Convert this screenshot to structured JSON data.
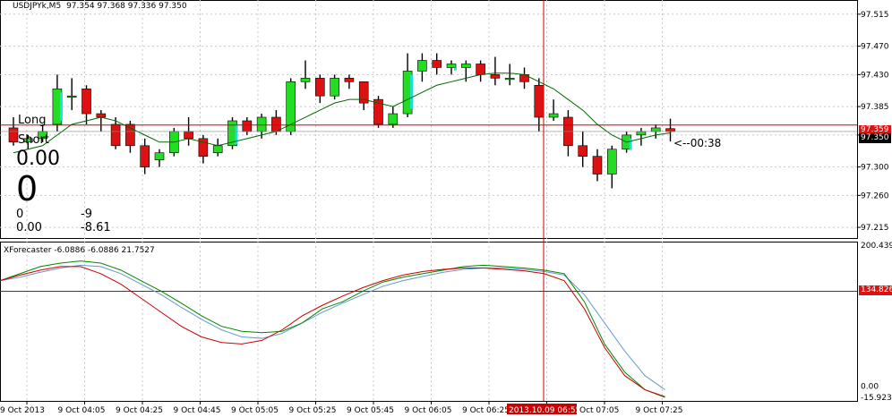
{
  "main_header": {
    "symbol": "USDJPYk,M5",
    "ohlc": "97.354 97.368 97.336 97.350"
  },
  "overlay": {
    "long_label": "Long",
    "short_label": "Short",
    "value_main": "0.00",
    "value_big": "0",
    "col1_row1": "0",
    "col1_row2": "0.00",
    "col2_row1": "-9",
    "col2_row2": "-8.61",
    "timer": "<--00:38"
  },
  "price_axis": {
    "ticks": [
      "97.515",
      "97.470",
      "97.430",
      "97.385",
      "97.345",
      "97.300",
      "97.260",
      "97.215"
    ],
    "current_bid": "97.350",
    "ask_line": "97.359"
  },
  "indicator": {
    "header": "XForecaster -6.0886 -6.0886 21.7527",
    "ticks": [
      "200.439",
      "0.00",
      "-15.9232"
    ],
    "level_line": "134.826"
  },
  "time_axis": {
    "labels": [
      "9 Oct 2013",
      "9 Oct 04:05",
      "9 Oct 04:25",
      "9 Oct 04:45",
      "9 Oct 05:05",
      "9 Oct 05:25",
      "9 Oct 05:45",
      "9 Oct 06:05",
      "9 Oct 06:25",
      "2013.10.09 06:55",
      "Oct 07:05",
      "9 Oct 07:25"
    ],
    "highlight_label": "2013.10.09 06:55"
  },
  "colors": {
    "bull": "#22dd22",
    "bear": "#dd1111",
    "wick": "#000000",
    "cyan_ha": "#22dddd",
    "ma": "#006600",
    "grid": "#c8c8c8",
    "crosshair": "#cc0000",
    "forecast_green": "#008800",
    "forecast_red": "#cc0000",
    "forecast_blue": "#6699cc"
  },
  "chart_data": {
    "type": "candlestick",
    "symbol": "USDJPYk",
    "timeframe": "M5",
    "ylim": [
      97.2,
      97.535
    ],
    "candles": [
      {
        "o": 97.355,
        "h": 97.37,
        "l": 97.33,
        "c": 97.335
      },
      {
        "o": 97.335,
        "h": 97.345,
        "l": 97.325,
        "c": 97.34
      },
      {
        "o": 97.34,
        "h": 97.36,
        "l": 97.335,
        "c": 97.35
      },
      {
        "o": 97.36,
        "h": 97.43,
        "l": 97.35,
        "c": 97.41
      },
      {
        "o": 97.4,
        "h": 97.425,
        "l": 97.38,
        "c": 97.4
      },
      {
        "o": 97.41,
        "h": 97.415,
        "l": 97.36,
        "c": 97.375
      },
      {
        "o": 97.375,
        "h": 97.38,
        "l": 97.35,
        "c": 97.37
      },
      {
        "o": 97.36,
        "h": 97.37,
        "l": 97.325,
        "c": 97.33
      },
      {
        "o": 97.36,
        "h": 97.365,
        "l": 97.32,
        "c": 97.33
      },
      {
        "o": 97.33,
        "h": 97.34,
        "l": 97.29,
        "c": 97.3
      },
      {
        "o": 97.31,
        "h": 97.325,
        "l": 97.3,
        "c": 97.32
      },
      {
        "o": 97.32,
        "h": 97.355,
        "l": 97.315,
        "c": 97.35
      },
      {
        "o": 97.35,
        "h": 97.37,
        "l": 97.33,
        "c": 97.34
      },
      {
        "o": 97.34,
        "h": 97.345,
        "l": 97.305,
        "c": 97.315
      },
      {
        "o": 97.32,
        "h": 97.34,
        "l": 97.315,
        "c": 97.33
      },
      {
        "o": 97.33,
        "h": 97.37,
        "l": 97.325,
        "c": 97.365
      },
      {
        "o": 97.365,
        "h": 97.37,
        "l": 97.345,
        "c": 97.35
      },
      {
        "o": 97.35,
        "h": 97.375,
        "l": 97.34,
        "c": 97.37
      },
      {
        "o": 97.37,
        "h": 97.38,
        "l": 97.345,
        "c": 97.35
      },
      {
        "o": 97.35,
        "h": 97.425,
        "l": 97.345,
        "c": 97.42
      },
      {
        "o": 97.42,
        "h": 97.45,
        "l": 97.41,
        "c": 97.425
      },
      {
        "o": 97.425,
        "h": 97.43,
        "l": 97.39,
        "c": 97.4
      },
      {
        "o": 97.4,
        "h": 97.43,
        "l": 97.395,
        "c": 97.425
      },
      {
        "o": 97.425,
        "h": 97.43,
        "l": 97.41,
        "c": 97.42
      },
      {
        "o": 97.42,
        "h": 97.42,
        "l": 97.38,
        "c": 97.39
      },
      {
        "o": 97.395,
        "h": 97.4,
        "l": 97.355,
        "c": 97.36
      },
      {
        "o": 97.36,
        "h": 97.385,
        "l": 97.355,
        "c": 97.375
      },
      {
        "o": 97.375,
        "h": 97.46,
        "l": 97.37,
        "c": 97.435
      },
      {
        "o": 97.435,
        "h": 97.46,
        "l": 97.42,
        "c": 97.45
      },
      {
        "o": 97.45,
        "h": 97.46,
        "l": 97.43,
        "c": 97.44
      },
      {
        "o": 97.44,
        "h": 97.45,
        "l": 97.43,
        "c": 97.445
      },
      {
        "o": 97.44,
        "h": 97.45,
        "l": 97.42,
        "c": 97.445
      },
      {
        "o": 97.445,
        "h": 97.45,
        "l": 97.42,
        "c": 97.43
      },
      {
        "o": 97.43,
        "h": 97.455,
        "l": 97.415,
        "c": 97.425
      },
      {
        "o": 97.425,
        "h": 97.445,
        "l": 97.415,
        "c": 97.425
      },
      {
        "o": 97.43,
        "h": 97.44,
        "l": 97.41,
        "c": 97.42
      },
      {
        "o": 97.415,
        "h": 97.425,
        "l": 97.35,
        "c": 97.37
      },
      {
        "o": 97.37,
        "h": 97.395,
        "l": 97.365,
        "c": 97.375
      },
      {
        "o": 97.37,
        "h": 97.38,
        "l": 97.315,
        "c": 97.33
      },
      {
        "o": 97.33,
        "h": 97.35,
        "l": 97.3,
        "c": 97.315
      },
      {
        "o": 97.315,
        "h": 97.325,
        "l": 97.28,
        "c": 97.29
      },
      {
        "o": 97.29,
        "h": 97.33,
        "l": 97.27,
        "c": 97.325
      },
      {
        "o": 97.325,
        "h": 97.35,
        "l": 97.32,
        "c": 97.345
      },
      {
        "o": 97.345,
        "h": 97.355,
        "l": 97.33,
        "c": 97.35
      },
      {
        "o": 97.35,
        "h": 97.36,
        "l": 97.34,
        "c": 97.355
      },
      {
        "o": 97.354,
        "h": 97.368,
        "l": 97.336,
        "c": 97.35
      }
    ],
    "moving_average": [
      97.32,
      97.325,
      97.33,
      97.345,
      97.36,
      97.365,
      97.37,
      97.365,
      97.355,
      97.345,
      97.335,
      97.335,
      97.34,
      97.335,
      97.33,
      97.335,
      97.34,
      97.345,
      97.35,
      97.36,
      97.37,
      97.38,
      97.39,
      97.395,
      97.395,
      97.39,
      97.385,
      97.395,
      97.405,
      97.415,
      97.42,
      97.425,
      97.43,
      97.432,
      97.432,
      97.43,
      97.42,
      97.41,
      97.395,
      97.38,
      97.36,
      97.345,
      97.335,
      97.34,
      97.345,
      97.348
    ],
    "forecast_green": [
      150,
      160,
      170,
      175,
      178,
      175,
      165,
      150,
      135,
      118,
      100,
      85,
      78,
      76,
      78,
      90,
      110,
      120,
      135,
      148,
      155,
      160,
      165,
      170,
      172,
      170,
      168,
      165,
      160,
      120,
      60,
      20,
      -5,
      -15
    ],
    "forecast_red": [
      150,
      158,
      165,
      170,
      170,
      160,
      145,
      125,
      105,
      85,
      70,
      62,
      60,
      65,
      80,
      100,
      115,
      128,
      140,
      150,
      158,
      163,
      166,
      168,
      168,
      166,
      164,
      160,
      150,
      110,
      55,
      15,
      -5,
      -16
    ],
    "forecast_blue": [
      150,
      155,
      162,
      168,
      172,
      170,
      160,
      145,
      130,
      112,
      95,
      80,
      70,
      68,
      75,
      90,
      105,
      118,
      130,
      142,
      150,
      156,
      162,
      166,
      168,
      168,
      166,
      163,
      158,
      130,
      90,
      50,
      15,
      -5
    ]
  }
}
